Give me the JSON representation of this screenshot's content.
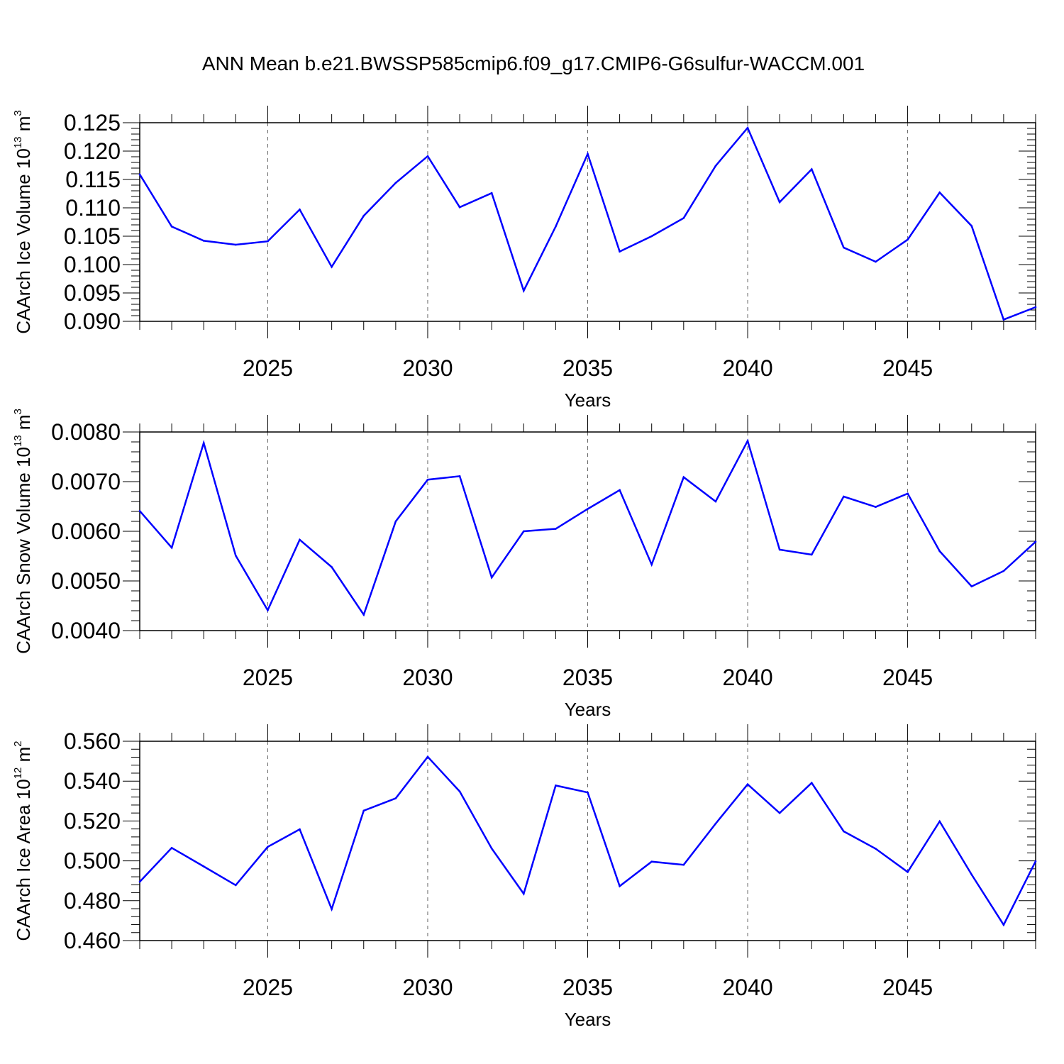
{
  "figure": {
    "title": "ANN Mean b.e21.BWSSP585cmip6.f09_g17.CMIP6-G6sulfur-WACCM.001"
  },
  "style": {
    "line_color": "#0000ff",
    "axis_color": "#000000",
    "grid_color": "#000000"
  },
  "chart_data": [
    {
      "type": "line",
      "ylabel": {
        "main": "CAArch Ice Volume 10",
        "sup1": "13",
        "mid": " m",
        "sup2": "3"
      },
      "xlabel": "Years",
      "xlim": [
        2021,
        2049
      ],
      "ylim": [
        0.09,
        0.125
      ],
      "xticks": [
        "2025",
        "2030",
        "2035",
        "2040",
        "2045"
      ],
      "yticks": [
        "0.090",
        "0.095",
        "0.100",
        "0.105",
        "0.110",
        "0.115",
        "0.120",
        "0.125"
      ],
      "x": [
        2021,
        2022,
        2023,
        2024,
        2025,
        2026,
        2027,
        2028,
        2029,
        2030,
        2031,
        2032,
        2033,
        2034,
        2035,
        2036,
        2037,
        2038,
        2039,
        2040,
        2041,
        2042,
        2043,
        2044,
        2045,
        2046,
        2047,
        2048,
        2049
      ],
      "series": [
        {
          "values": [
            0.1159,
            0.1067,
            0.1042,
            0.1035,
            0.1041,
            0.1097,
            0.0996,
            0.1086,
            0.1144,
            0.1191,
            0.1101,
            0.1126,
            0.0954,
            0.1067,
            0.1195,
            0.1023,
            0.105,
            0.1082,
            0.1174,
            0.1241,
            0.111,
            0.1168,
            0.103,
            0.1005,
            0.1044,
            0.1127,
            0.1068,
            0.0903,
            0.0925
          ]
        }
      ],
      "grid": "vertical dashed at labeled years"
    },
    {
      "type": "line",
      "ylabel": {
        "main": "CAArch Snow Volume 10",
        "sup1": "13",
        "mid": " m",
        "sup2": "3"
      },
      "xlabel": "Years",
      "xlim": [
        2021,
        2049
      ],
      "ylim": [
        0.004,
        0.008
      ],
      "xticks": [
        "2025",
        "2030",
        "2035",
        "2040",
        "2045"
      ],
      "yticks": [
        "0.0040",
        "0.0050",
        "0.0060",
        "0.0070",
        "0.0080"
      ],
      "x": [
        2021,
        2022,
        2023,
        2024,
        2025,
        2026,
        2027,
        2028,
        2029,
        2030,
        2031,
        2032,
        2033,
        2034,
        2035,
        2036,
        2037,
        2038,
        2039,
        2040,
        2041,
        2042,
        2043,
        2044,
        2045,
        2046,
        2047,
        2048,
        2049
      ],
      "series": [
        {
          "values": [
            0.00641,
            0.00567,
            0.00778,
            0.00551,
            0.00441,
            0.00583,
            0.00528,
            0.00432,
            0.0062,
            0.00704,
            0.00711,
            0.00507,
            0.006,
            0.00605,
            0.00645,
            0.00683,
            0.00533,
            0.00709,
            0.0066,
            0.00782,
            0.00563,
            0.00553,
            0.0067,
            0.00649,
            0.00676,
            0.0056,
            0.00489,
            0.0052,
            0.00579
          ]
        }
      ],
      "grid": "vertical dashed at labeled years"
    },
    {
      "type": "line",
      "ylabel": {
        "main": "CAArch Ice Area 10",
        "sup1": "12",
        "mid": " m",
        "sup2": "2"
      },
      "xlabel": "Years",
      "xlim": [
        2021,
        2049
      ],
      "ylim": [
        0.46,
        0.56
      ],
      "xticks": [
        "2025",
        "2030",
        "2035",
        "2040",
        "2045"
      ],
      "yticks": [
        "0.460",
        "0.480",
        "0.500",
        "0.520",
        "0.540",
        "0.560"
      ],
      "x": [
        2021,
        2022,
        2023,
        2024,
        2025,
        2026,
        2027,
        2028,
        2029,
        2030,
        2031,
        2032,
        2033,
        2034,
        2035,
        2036,
        2037,
        2038,
        2039,
        2040,
        2041,
        2042,
        2043,
        2044,
        2045,
        2046,
        2047,
        2048,
        2049
      ],
      "series": [
        {
          "values": [
            0.4895,
            0.5065,
            0.4972,
            0.4878,
            0.507,
            0.5158,
            0.4758,
            0.5252,
            0.5314,
            0.5522,
            0.5348,
            0.5062,
            0.4835,
            0.5378,
            0.5343,
            0.4873,
            0.4996,
            0.498,
            0.5187,
            0.5384,
            0.524,
            0.5391,
            0.5148,
            0.5061,
            0.4944,
            0.5198,
            0.4931,
            0.4679,
            0.4998
          ]
        }
      ],
      "grid": "vertical dashed at labeled years"
    }
  ]
}
